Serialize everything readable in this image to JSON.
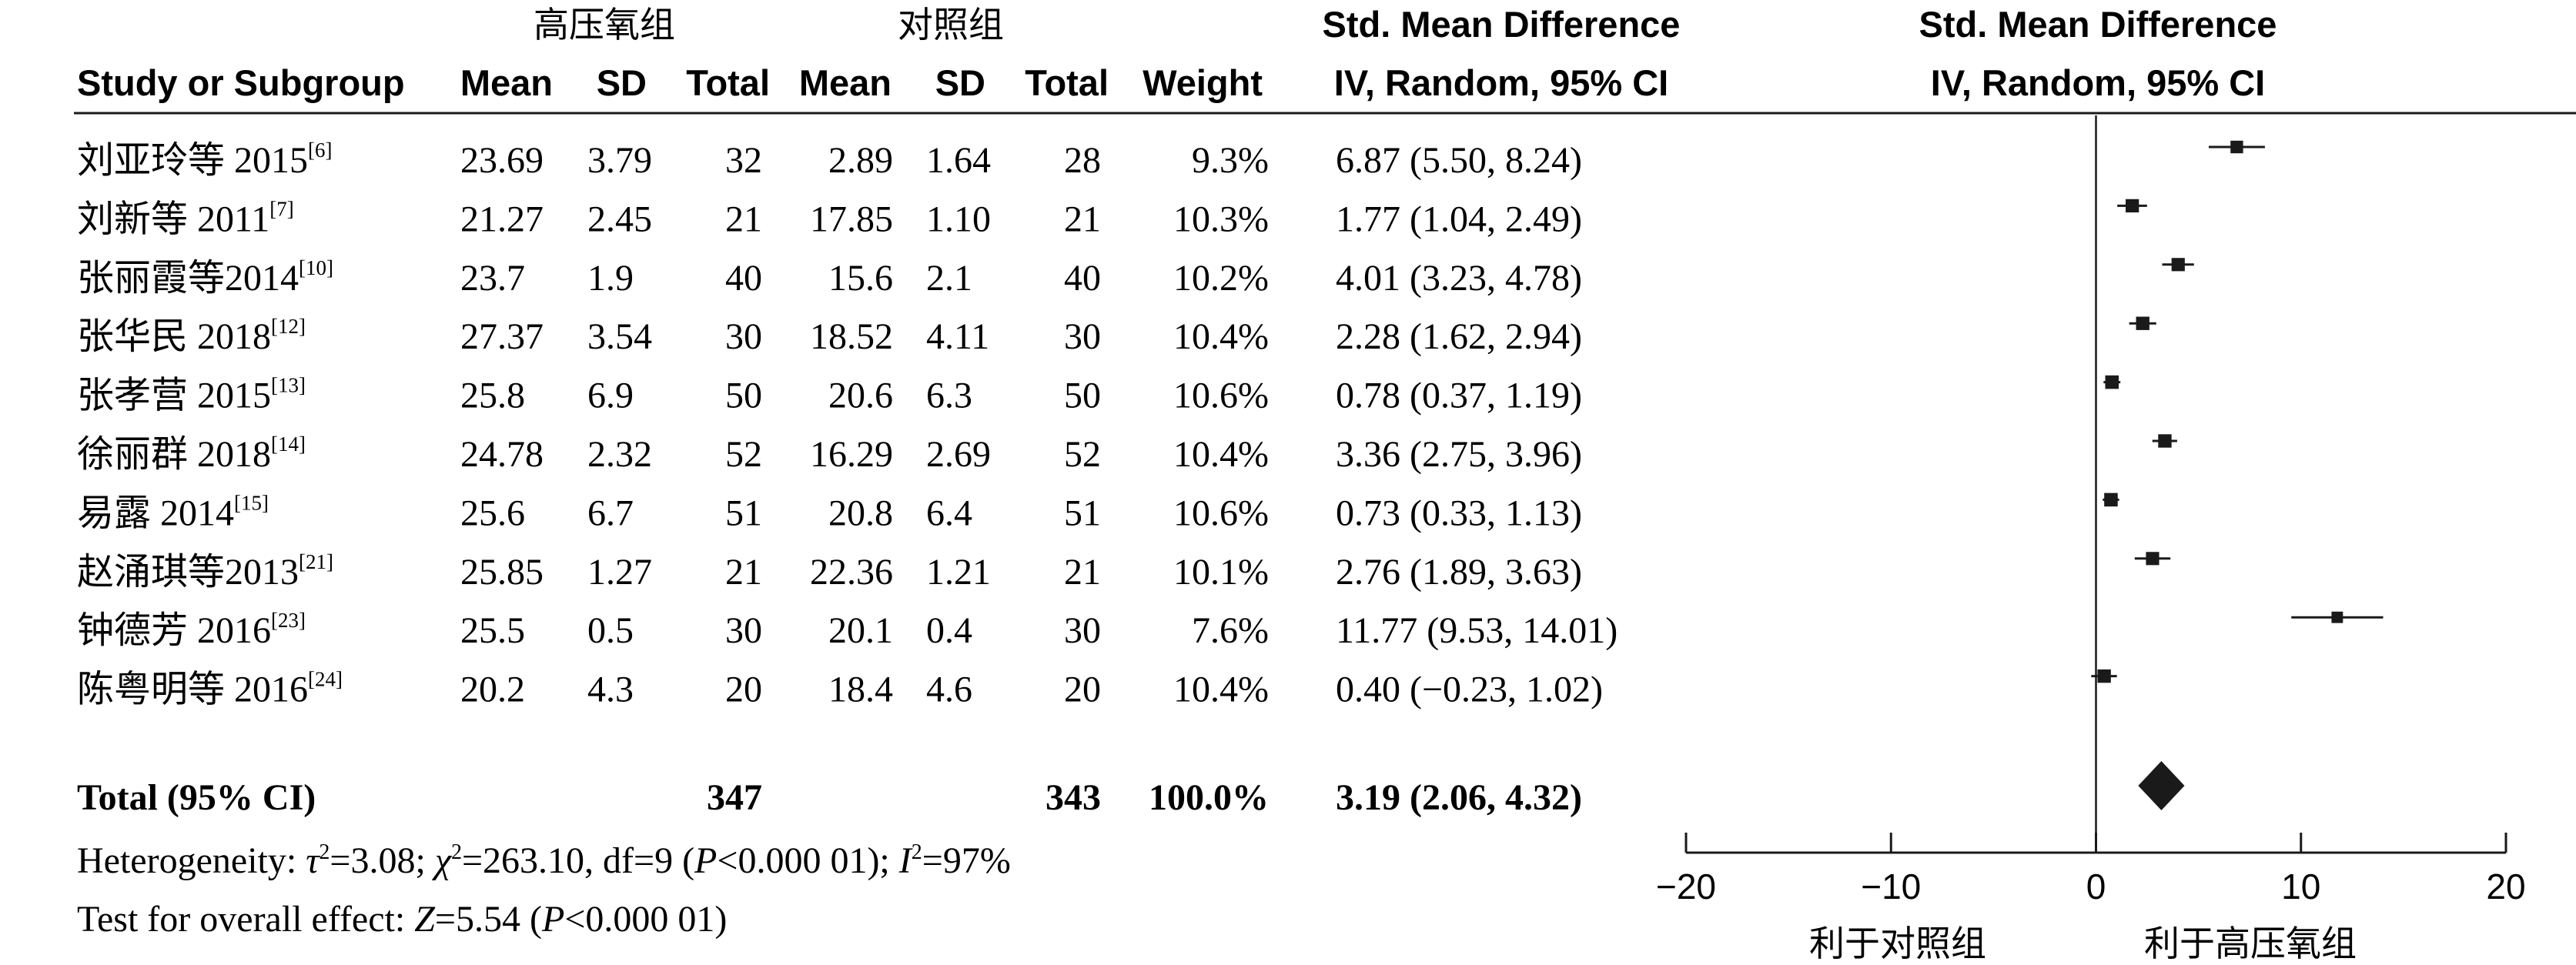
{
  "groups": {
    "experimental": "高压氧组",
    "control": "对照组"
  },
  "headers": {
    "study": "Study or Subgroup",
    "mean": "Mean",
    "sd": "SD",
    "total": "Total",
    "weight": "Weight",
    "effect_title": "Std. Mean Difference",
    "effect_method": "IV, Random, 95% CI"
  },
  "rows": [
    {
      "name": "刘亚玲等 2015",
      "ref": "[6]",
      "e_mean": "23.69",
      "e_sd": "3.79",
      "e_total": "32",
      "c_mean": "2.89",
      "c_sd": "1.64",
      "c_total": "28",
      "weight": "9.3%",
      "ci_text": "6.87 (5.50, 8.24)"
    },
    {
      "name": "刘新等 2011",
      "ref": "[7]",
      "e_mean": "21.27",
      "e_sd": "2.45",
      "e_total": "21",
      "c_mean": "17.85",
      "c_sd": "1.10",
      "c_total": "21",
      "weight": "10.3%",
      "ci_text": "1.77 (1.04, 2.49)"
    },
    {
      "name": "张丽霞等2014",
      "ref": "[10]",
      "e_mean": "23.7",
      "e_sd": "1.9",
      "e_total": "40",
      "c_mean": "15.6",
      "c_sd": "2.1",
      "c_total": "40",
      "weight": "10.2%",
      "ci_text": "4.01 (3.23, 4.78)"
    },
    {
      "name": "张华民 2018",
      "ref": "[12]",
      "e_mean": "27.37",
      "e_sd": "3.54",
      "e_total": "30",
      "c_mean": "18.52",
      "c_sd": "4.11",
      "c_total": "30",
      "weight": "10.4%",
      "ci_text": "2.28 (1.62, 2.94)"
    },
    {
      "name": "张孝营 2015",
      "ref": "[13]",
      "e_mean": "25.8",
      "e_sd": "6.9",
      "e_total": "50",
      "c_mean": "20.6",
      "c_sd": "6.3",
      "c_total": "50",
      "weight": "10.6%",
      "ci_text": "0.78 (0.37, 1.19)"
    },
    {
      "name": "徐丽群 2018",
      "ref": "[14]",
      "e_mean": "24.78",
      "e_sd": "2.32",
      "e_total": "52",
      "c_mean": "16.29",
      "c_sd": "2.69",
      "c_total": "52",
      "weight": "10.4%",
      "ci_text": "3.36 (2.75, 3.96)"
    },
    {
      "name": "易露 2014",
      "ref": "[15]",
      "e_mean": "25.6",
      "e_sd": "6.7",
      "e_total": "51",
      "c_mean": "20.8",
      "c_sd": "6.4",
      "c_total": "51",
      "weight": "10.6%",
      "ci_text": "0.73 (0.33, 1.13)"
    },
    {
      "name": "赵涌琪等2013",
      "ref": "[21]",
      "e_mean": "25.85",
      "e_sd": "1.27",
      "e_total": "21",
      "c_mean": "22.36",
      "c_sd": "1.21",
      "c_total": "21",
      "weight": "10.1%",
      "ci_text": "2.76 (1.89, 3.63)"
    },
    {
      "name": "钟德芳 2016",
      "ref": "[23]",
      "e_mean": "25.5",
      "e_sd": "0.5",
      "e_total": "30",
      "c_mean": "20.1",
      "c_sd": "0.4",
      "c_total": "30",
      "weight": "7.6%",
      "ci_text": "11.77 (9.53, 14.01)"
    },
    {
      "name": "陈粤明等 2016",
      "ref": "[24]",
      "e_mean": "20.2",
      "e_sd": "4.3",
      "e_total": "20",
      "c_mean": "18.4",
      "c_sd": "4.6",
      "c_total": "20",
      "weight": "10.4%",
      "ci_text": "0.40 (−0.23, 1.02)"
    }
  ],
  "total": {
    "label": "Total (95% CI)",
    "e_total": "347",
    "c_total": "343",
    "weight": "100.0%",
    "ci_text": "3.19 (2.06, 4.32)"
  },
  "heterogeneity": {
    "prefix": "Heterogeneity: ",
    "tau": "τ",
    "tau_val": "=3.08; ",
    "chi": "χ",
    "chi_val": "=263.10, df=9 (",
    "p": "P",
    "p_val": "<0.000 01); ",
    "i": "I",
    "i_val": "=97%",
    "sup": "2"
  },
  "overall": {
    "prefix": "Test for overall effect: ",
    "z": "Z",
    "z_val": "=5.54 (",
    "p": "P",
    "p_val": "<0.000 01)"
  },
  "favours": {
    "left": "利于对照组",
    "right": "利于高压氧组"
  },
  "chart_data": {
    "type": "forest",
    "title": "Std. Mean Difference",
    "subtitle": "IV, Random, 95% CI",
    "xlim": [
      -20,
      20
    ],
    "ticks": [
      -20,
      -10,
      0,
      10,
      20
    ],
    "tick_labels": [
      "−20",
      "−10",
      "0",
      "10",
      "20"
    ],
    "studies": [
      {
        "name": "刘亚玲等 2015",
        "est": 6.87,
        "lo": 5.5,
        "hi": 8.24,
        "weight": 9.3
      },
      {
        "name": "刘新等 2011",
        "est": 1.77,
        "lo": 1.04,
        "hi": 2.49,
        "weight": 10.3
      },
      {
        "name": "张丽霞等2014",
        "est": 4.01,
        "lo": 3.23,
        "hi": 4.78,
        "weight": 10.2
      },
      {
        "name": "张华民 2018",
        "est": 2.28,
        "lo": 1.62,
        "hi": 2.94,
        "weight": 10.4
      },
      {
        "name": "张孝营 2015",
        "est": 0.78,
        "lo": 0.37,
        "hi": 1.19,
        "weight": 10.6
      },
      {
        "name": "徐丽群 2018",
        "est": 3.36,
        "lo": 2.75,
        "hi": 3.96,
        "weight": 10.4
      },
      {
        "name": "易露 2014",
        "est": 0.73,
        "lo": 0.33,
        "hi": 1.13,
        "weight": 10.6
      },
      {
        "name": "赵涌琪等2013",
        "est": 2.76,
        "lo": 1.89,
        "hi": 3.63,
        "weight": 10.1
      },
      {
        "name": "钟德芳 2016",
        "est": 11.77,
        "lo": 9.53,
        "hi": 14.01,
        "weight": 7.6
      },
      {
        "name": "陈粤明等 2016",
        "est": 0.4,
        "lo": -0.23,
        "hi": 1.02,
        "weight": 10.4
      }
    ],
    "pooled": {
      "est": 3.19,
      "lo": 2.06,
      "hi": 4.32
    }
  }
}
